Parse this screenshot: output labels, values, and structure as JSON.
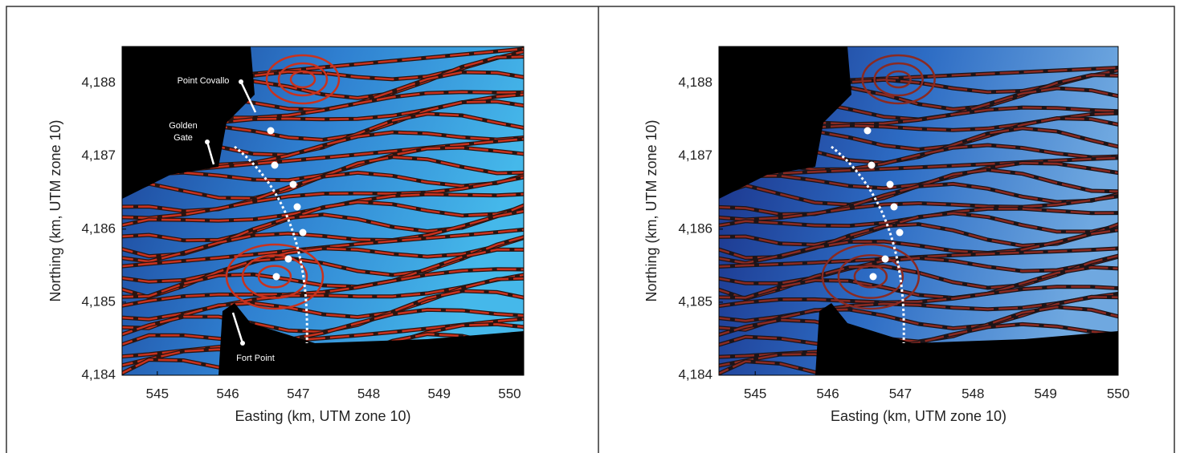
{
  "chart_data": [
    {
      "type": "map",
      "x_label": "Easting (km, UTM zone 10)",
      "y_label": "Northing (km, UTM zone 10)",
      "xlim": [
        544.5,
        550.2
      ],
      "xticks": [
        545,
        546,
        547,
        548,
        549,
        550
      ],
      "ylim": [
        4184,
        4188.5
      ],
      "yticks": [
        {
          "value": 4184,
          "label": "4,184"
        },
        {
          "value": 4185,
          "label": "4,185"
        },
        {
          "value": 4186,
          "label": "4,186"
        },
        {
          "value": 4187,
          "label": "4,187"
        },
        {
          "value": 4188,
          "label": "4,188"
        }
      ],
      "annotations": [
        {
          "text": [
            "Point Covallo"
          ]
        },
        {
          "text": [
            "Golden",
            "Gate"
          ]
        },
        {
          "text": [
            "Fort Point"
          ]
        }
      ]
    },
    {
      "type": "map",
      "x_label": "Easting (km, UTM zone 10)",
      "y_label": "Northing (km, UTM zone 10)",
      "xlim": [
        544.5,
        550.0
      ],
      "xticks": [
        545,
        546,
        547,
        548,
        549,
        550
      ],
      "ylim": [
        4184,
        4188.5
      ],
      "yticks": [
        {
          "value": 4184,
          "label": "4,184"
        },
        {
          "value": 4185,
          "label": "4,185"
        },
        {
          "value": 4186,
          "label": "4,186"
        },
        {
          "value": 4187,
          "label": "4,187"
        },
        {
          "value": 4188,
          "label": "4,188"
        }
      ]
    }
  ]
}
